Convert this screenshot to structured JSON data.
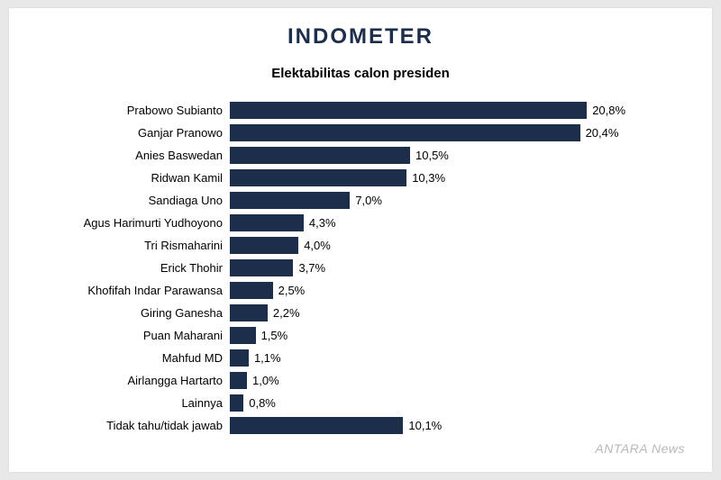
{
  "logo": "INDOMETER",
  "chart": {
    "type": "bar",
    "title": "Elektabilitas calon presiden",
    "bar_color": "#1c2e4a",
    "background_color": "#ffffff",
    "label_fontsize": 13,
    "value_fontsize": 13,
    "title_fontsize": 15,
    "max_value": 21.0,
    "bar_area_width": 400,
    "items": [
      {
        "label": "Prabowo Subianto",
        "value": 20.8,
        "display": "20,8%"
      },
      {
        "label": "Ganjar Pranowo",
        "value": 20.4,
        "display": "20,4%"
      },
      {
        "label": "Anies Baswedan",
        "value": 10.5,
        "display": "10,5%"
      },
      {
        "label": "Ridwan Kamil",
        "value": 10.3,
        "display": "10,3%"
      },
      {
        "label": "Sandiaga Uno",
        "value": 7.0,
        "display": "7,0%"
      },
      {
        "label": "Agus Harimurti Yudhoyono",
        "value": 4.3,
        "display": "4,3%"
      },
      {
        "label": "Tri Rismaharini",
        "value": 4.0,
        "display": "4,0%"
      },
      {
        "label": "Erick Thohir",
        "value": 3.7,
        "display": "3,7%"
      },
      {
        "label": "Khofifah Indar Parawansa",
        "value": 2.5,
        "display": "2,5%"
      },
      {
        "label": "Giring Ganesha",
        "value": 2.2,
        "display": "2,2%"
      },
      {
        "label": "Puan Maharani",
        "value": 1.5,
        "display": "1,5%"
      },
      {
        "label": "Mahfud MD",
        "value": 1.1,
        "display": "1,1%"
      },
      {
        "label": "Airlangga Hartarto",
        "value": 1.0,
        "display": "1,0%"
      },
      {
        "label": "Lainnya",
        "value": 0.8,
        "display": "0,8%"
      },
      {
        "label": "Tidak tahu/tidak jawab",
        "value": 10.1,
        "display": "10,1%"
      }
    ]
  },
  "watermark": "ANTARA News"
}
